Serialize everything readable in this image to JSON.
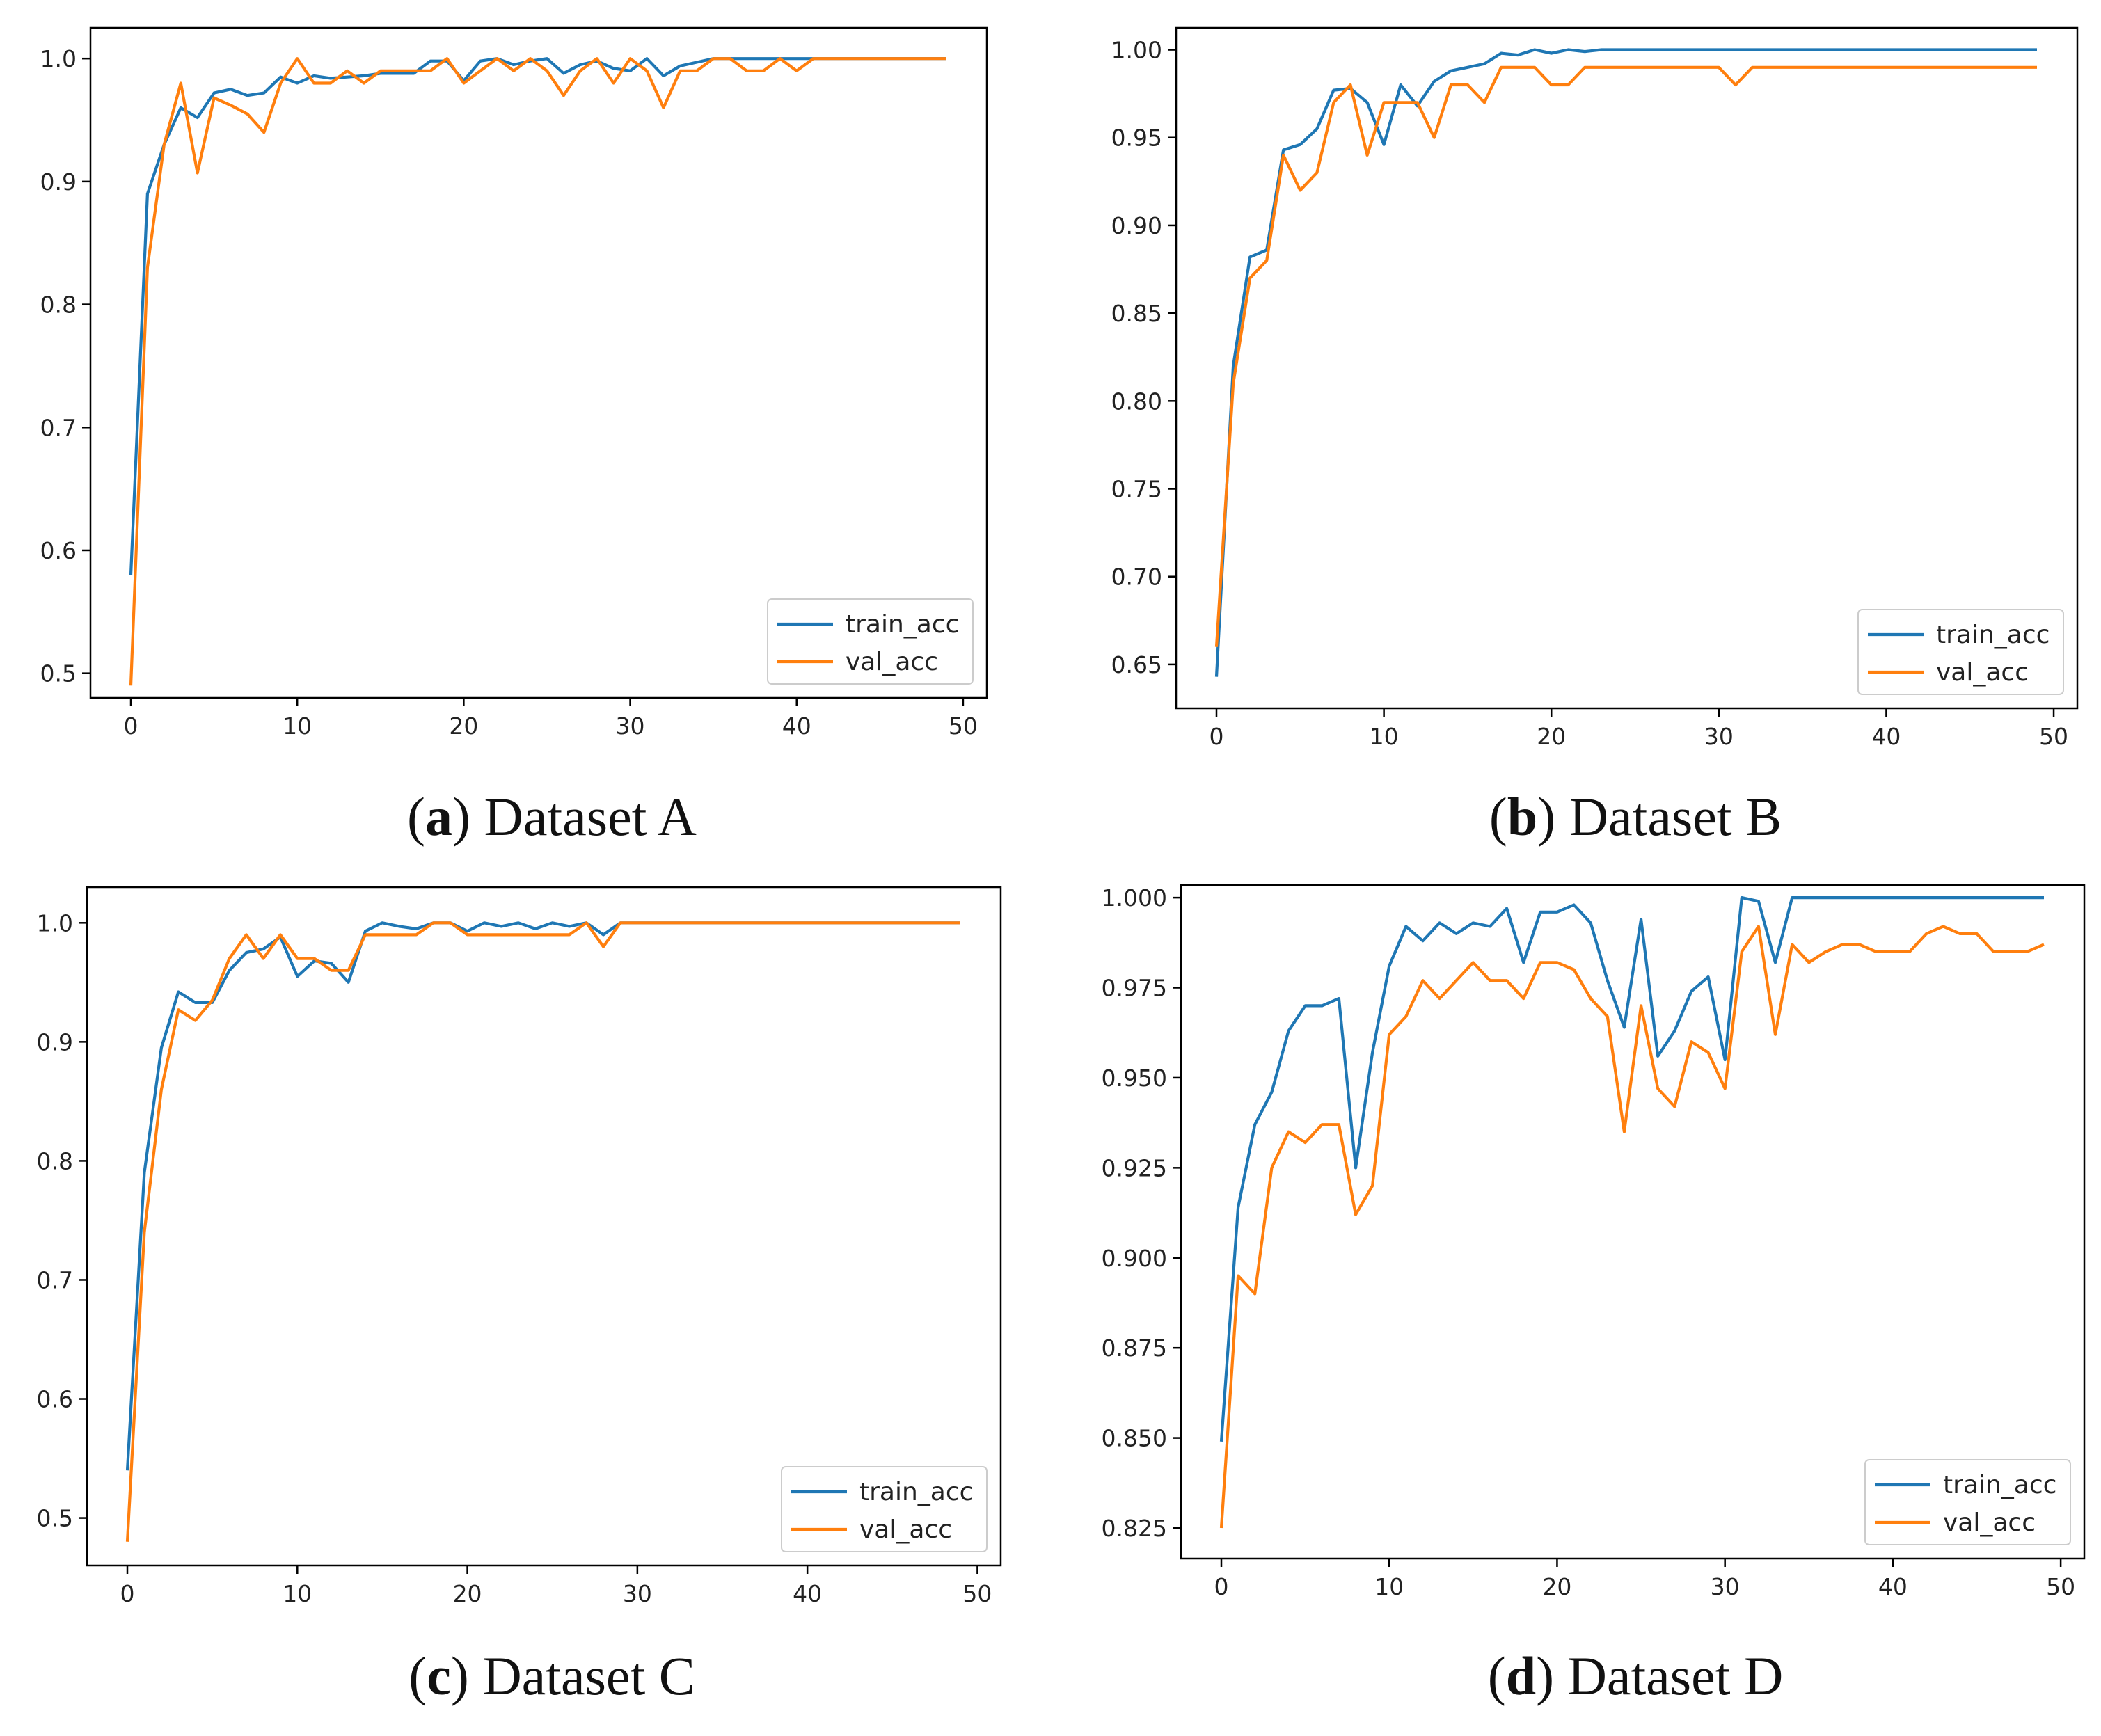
{
  "figure": {
    "panels": [
      {
        "letter": "a",
        "caption": "Dataset A"
      },
      {
        "letter": "b",
        "caption": "Dataset B"
      },
      {
        "letter": "c",
        "caption": "Dataset C"
      },
      {
        "letter": "d",
        "caption": "Dataset D"
      }
    ]
  },
  "colors": {
    "train": "#1f77b4",
    "val": "#ff7f0e",
    "axis": "#000000"
  },
  "chart_data": [
    {
      "type": "line",
      "title": "Dataset A",
      "legend_position": "lower-right",
      "xlim": [
        0,
        49
      ],
      "ylim": [
        0.48,
        1.025
      ],
      "xticks": [
        0,
        10,
        20,
        30,
        40,
        50
      ],
      "yticks": [
        0.5,
        0.6,
        0.7,
        0.8,
        0.9,
        1.0
      ],
      "ytick_labels": [
        "0.5",
        "0.6",
        "0.7",
        "0.8",
        "0.9",
        "1.0"
      ],
      "series": [
        {
          "name": "train_acc",
          "x": [
            0,
            1,
            2,
            3,
            4,
            5,
            6,
            7,
            8,
            9,
            10,
            11,
            12,
            13,
            14,
            15,
            16,
            17,
            18,
            19,
            20,
            21,
            22,
            23,
            24,
            25,
            26,
            27,
            28,
            29,
            30,
            31,
            32,
            33,
            34,
            35,
            36,
            37,
            38,
            39,
            40,
            41,
            42,
            43,
            44,
            45,
            46,
            47,
            48,
            49
          ],
          "values": [
            0.58,
            0.89,
            0.93,
            0.96,
            0.952,
            0.972,
            0.975,
            0.97,
            0.972,
            0.985,
            0.98,
            0.986,
            0.984,
            0.985,
            0.986,
            0.988,
            0.988,
            0.988,
            0.998,
            0.998,
            0.982,
            0.998,
            1.0,
            0.995,
            0.998,
            1.0,
            0.988,
            0.995,
            0.998,
            0.992,
            0.99,
            1.0,
            0.986,
            0.994,
            0.997,
            1.0,
            1.0,
            1.0,
            1.0,
            1.0,
            1.0,
            1.0,
            1.0,
            1.0,
            1.0,
            1.0,
            1.0,
            1.0,
            1.0,
            1.0
          ]
        },
        {
          "name": "val_acc",
          "x": [
            0,
            1,
            2,
            3,
            4,
            5,
            6,
            7,
            8,
            9,
            10,
            11,
            12,
            13,
            14,
            15,
            16,
            17,
            18,
            19,
            20,
            21,
            22,
            23,
            24,
            25,
            26,
            27,
            28,
            29,
            30,
            31,
            32,
            33,
            34,
            35,
            36,
            37,
            38,
            39,
            40,
            41,
            42,
            43,
            44,
            45,
            46,
            47,
            48,
            49
          ],
          "values": [
            0.49,
            0.83,
            0.93,
            0.98,
            0.907,
            0.968,
            0.962,
            0.955,
            0.94,
            0.98,
            1.0,
            0.98,
            0.98,
            0.99,
            0.98,
            0.99,
            0.99,
            0.99,
            0.99,
            1.0,
            0.98,
            0.99,
            1.0,
            0.99,
            1.0,
            0.99,
            0.97,
            0.99,
            1.0,
            0.98,
            1.0,
            0.99,
            0.96,
            0.99,
            0.99,
            1.0,
            1.0,
            0.99,
            0.99,
            1.0,
            0.99,
            1.0,
            1.0,
            1.0,
            1.0,
            1.0,
            1.0,
            1.0,
            1.0,
            1.0
          ]
        }
      ]
    },
    {
      "type": "line",
      "title": "Dataset B",
      "legend_position": "lower-right",
      "xlim": [
        0,
        49
      ],
      "ylim": [
        0.625,
        1.0125
      ],
      "xticks": [
        0,
        10,
        20,
        30,
        40,
        50
      ],
      "yticks": [
        0.65,
        0.7,
        0.75,
        0.8,
        0.85,
        0.9,
        0.95,
        1.0
      ],
      "ytick_labels": [
        "0.65",
        "0.70",
        "0.75",
        "0.80",
        "0.85",
        "0.90",
        "0.95",
        "1.00"
      ],
      "series": [
        {
          "name": "train_acc",
          "x": [
            0,
            1,
            2,
            3,
            4,
            5,
            6,
            7,
            8,
            9,
            10,
            11,
            12,
            13,
            14,
            15,
            16,
            17,
            18,
            19,
            20,
            21,
            22,
            23,
            24,
            25,
            26,
            27,
            28,
            29,
            30,
            31,
            32,
            33,
            34,
            35,
            36,
            37,
            38,
            39,
            40,
            41,
            42,
            43,
            44,
            45,
            46,
            47,
            48,
            49
          ],
          "values": [
            0.643,
            0.82,
            0.882,
            0.886,
            0.943,
            0.946,
            0.955,
            0.977,
            0.978,
            0.97,
            0.946,
            0.98,
            0.968,
            0.982,
            0.988,
            0.99,
            0.992,
            0.998,
            0.997,
            1.0,
            0.998,
            1.0,
            0.999,
            1.0,
            1.0,
            1.0,
            1.0,
            1.0,
            1.0,
            1.0,
            1.0,
            1.0,
            1.0,
            1.0,
            1.0,
            1.0,
            1.0,
            1.0,
            1.0,
            1.0,
            1.0,
            1.0,
            1.0,
            1.0,
            1.0,
            1.0,
            1.0,
            1.0,
            1.0,
            1.0
          ]
        },
        {
          "name": "val_acc",
          "x": [
            0,
            1,
            2,
            3,
            4,
            5,
            6,
            7,
            8,
            9,
            10,
            11,
            12,
            13,
            14,
            15,
            16,
            17,
            18,
            19,
            20,
            21,
            22,
            23,
            24,
            25,
            26,
            27,
            28,
            29,
            30,
            31,
            32,
            33,
            34,
            35,
            36,
            37,
            38,
            39,
            40,
            41,
            42,
            43,
            44,
            45,
            46,
            47,
            48,
            49
          ],
          "values": [
            0.66,
            0.81,
            0.87,
            0.88,
            0.94,
            0.92,
            0.93,
            0.97,
            0.98,
            0.94,
            0.97,
            0.97,
            0.97,
            0.95,
            0.98,
            0.98,
            0.97,
            0.99,
            0.99,
            0.99,
            0.98,
            0.98,
            0.99,
            0.99,
            0.99,
            0.99,
            0.99,
            0.99,
            0.99,
            0.99,
            0.99,
            0.98,
            0.99,
            0.99,
            0.99,
            0.99,
            0.99,
            0.99,
            0.99,
            0.99,
            0.99,
            0.99,
            0.99,
            0.99,
            0.99,
            0.99,
            0.99,
            0.99,
            0.99,
            0.99
          ]
        }
      ]
    },
    {
      "type": "line",
      "title": "Dataset C",
      "legend_position": "lower-right",
      "xlim": [
        0,
        49
      ],
      "ylim": [
        0.46,
        1.03
      ],
      "xticks": [
        0,
        10,
        20,
        30,
        40,
        50
      ],
      "yticks": [
        0.5,
        0.6,
        0.7,
        0.8,
        0.9,
        1.0
      ],
      "ytick_labels": [
        "0.5",
        "0.6",
        "0.7",
        "0.8",
        "0.9",
        "1.0"
      ],
      "series": [
        {
          "name": "train_acc",
          "x": [
            0,
            1,
            2,
            3,
            4,
            5,
            6,
            7,
            8,
            9,
            10,
            11,
            12,
            13,
            14,
            15,
            16,
            17,
            18,
            19,
            20,
            21,
            22,
            23,
            24,
            25,
            26,
            27,
            28,
            29,
            30,
            31,
            32,
            33,
            34,
            35,
            36,
            37,
            38,
            39,
            40,
            41,
            42,
            43,
            44,
            45,
            46,
            47,
            48,
            49
          ],
          "values": [
            0.54,
            0.79,
            0.895,
            0.942,
            0.933,
            0.933,
            0.96,
            0.975,
            0.978,
            0.988,
            0.955,
            0.968,
            0.966,
            0.95,
            0.993,
            1.0,
            0.997,
            0.995,
            1.0,
            1.0,
            0.993,
            1.0,
            0.997,
            1.0,
            0.995,
            1.0,
            0.997,
            1.0,
            0.99,
            1.0,
            1.0,
            1.0,
            1.0,
            1.0,
            1.0,
            1.0,
            1.0,
            1.0,
            1.0,
            1.0,
            1.0,
            1.0,
            1.0,
            1.0,
            1.0,
            1.0,
            1.0,
            1.0,
            1.0,
            1.0
          ]
        },
        {
          "name": "val_acc",
          "x": [
            0,
            1,
            2,
            3,
            4,
            5,
            6,
            7,
            8,
            9,
            10,
            11,
            12,
            13,
            14,
            15,
            16,
            17,
            18,
            19,
            20,
            21,
            22,
            23,
            24,
            25,
            26,
            27,
            28,
            29,
            30,
            31,
            32,
            33,
            34,
            35,
            36,
            37,
            38,
            39,
            40,
            41,
            42,
            43,
            44,
            45,
            46,
            47,
            48,
            49
          ],
          "values": [
            0.48,
            0.74,
            0.86,
            0.927,
            0.918,
            0.935,
            0.97,
            0.99,
            0.97,
            0.99,
            0.97,
            0.97,
            0.96,
            0.96,
            0.99,
            0.99,
            0.99,
            0.99,
            1.0,
            1.0,
            0.99,
            0.99,
            0.99,
            0.99,
            0.99,
            0.99,
            0.99,
            1.0,
            0.98,
            1.0,
            1.0,
            1.0,
            1.0,
            1.0,
            1.0,
            1.0,
            1.0,
            1.0,
            1.0,
            1.0,
            1.0,
            1.0,
            1.0,
            1.0,
            1.0,
            1.0,
            1.0,
            1.0,
            1.0,
            1.0
          ]
        }
      ]
    },
    {
      "type": "line",
      "title": "Dataset D",
      "legend_position": "lower-right",
      "xlim": [
        0,
        49
      ],
      "ylim": [
        0.8165,
        1.0035
      ],
      "xticks": [
        0,
        10,
        20,
        30,
        40,
        50
      ],
      "yticks": [
        0.825,
        0.85,
        0.875,
        0.9,
        0.925,
        0.95,
        0.975,
        1.0
      ],
      "ytick_labels": [
        "0.825",
        "0.850",
        "0.875",
        "0.900",
        "0.925",
        "0.950",
        "0.975",
        "1.000"
      ],
      "series": [
        {
          "name": "train_acc",
          "x": [
            0,
            1,
            2,
            3,
            4,
            5,
            6,
            7,
            8,
            9,
            10,
            11,
            12,
            13,
            14,
            15,
            16,
            17,
            18,
            19,
            20,
            21,
            22,
            23,
            24,
            25,
            26,
            27,
            28,
            29,
            30,
            31,
            32,
            33,
            34,
            35,
            36,
            37,
            38,
            39,
            40,
            41,
            42,
            43,
            44,
            45,
            46,
            47,
            48,
            49
          ],
          "values": [
            0.849,
            0.914,
            0.937,
            0.946,
            0.963,
            0.97,
            0.97,
            0.972,
            0.925,
            0.957,
            0.981,
            0.992,
            0.988,
            0.993,
            0.99,
            0.993,
            0.992,
            0.997,
            0.982,
            0.996,
            0.996,
            0.998,
            0.993,
            0.977,
            0.964,
            0.994,
            0.956,
            0.963,
            0.974,
            0.978,
            0.955,
            1.0,
            0.999,
            0.982,
            1.0,
            1.0,
            1.0,
            1.0,
            1.0,
            1.0,
            1.0,
            1.0,
            1.0,
            1.0,
            1.0,
            1.0,
            1.0,
            1.0,
            1.0,
            1.0
          ]
        },
        {
          "name": "val_acc",
          "x": [
            0,
            1,
            2,
            3,
            4,
            5,
            6,
            7,
            8,
            9,
            10,
            11,
            12,
            13,
            14,
            15,
            16,
            17,
            18,
            19,
            20,
            21,
            22,
            23,
            24,
            25,
            26,
            27,
            28,
            29,
            30,
            31,
            32,
            33,
            34,
            35,
            36,
            37,
            38,
            39,
            40,
            41,
            42,
            43,
            44,
            45,
            46,
            47,
            48,
            49
          ],
          "values": [
            0.825,
            0.895,
            0.89,
            0.925,
            0.935,
            0.932,
            0.937,
            0.937,
            0.912,
            0.92,
            0.962,
            0.967,
            0.977,
            0.972,
            0.977,
            0.982,
            0.977,
            0.977,
            0.972,
            0.982,
            0.982,
            0.98,
            0.972,
            0.967,
            0.935,
            0.97,
            0.947,
            0.942,
            0.96,
            0.957,
            0.947,
            0.985,
            0.992,
            0.962,
            0.987,
            0.982,
            0.985,
            0.987,
            0.987,
            0.985,
            0.985,
            0.985,
            0.99,
            0.992,
            0.99,
            0.99,
            0.985,
            0.985,
            0.985,
            0.987
          ]
        }
      ]
    }
  ]
}
